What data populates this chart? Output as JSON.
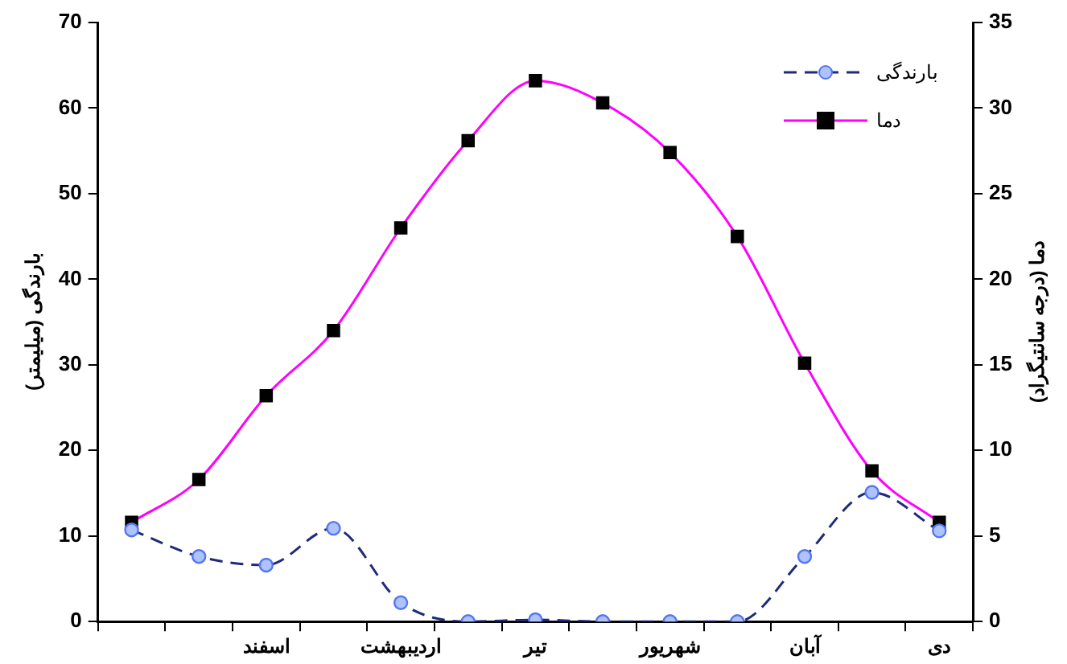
{
  "chart_data": {
    "type": "line",
    "ylabel": "بارندگی (میلیمتر)",
    "y2label": "دما (درجه سانتیگراد)",
    "categories": [
      null,
      null,
      "اسفند",
      null,
      "اردیبهشت",
      null,
      "تیر",
      null,
      "شهریور",
      null,
      "آبان",
      null,
      "دی"
    ],
    "series": [
      {
        "name": "بارندگی",
        "color": "#1f2a7a",
        "marker": "circle",
        "line_style": "dashed",
        "values": [
          10.7,
          7.6,
          6.6,
          10.9,
          2.2,
          0,
          0.2,
          0,
          0,
          0,
          7.6,
          15.1,
          10.6
        ]
      },
      {
        "name": "دما",
        "color": "#ff00ff",
        "marker": "square",
        "line_style": "solid",
        "axis": "y2",
        "values": [
          5.8,
          8.3,
          13.2,
          17.0,
          23.0,
          28.1,
          31.6,
          30.3,
          27.4,
          22.5,
          15.1,
          8.8,
          5.8
        ]
      }
    ],
    "ylim": [
      0,
      70
    ],
    "yticks": [
      0,
      10,
      20,
      30,
      40,
      50,
      60,
      70
    ],
    "y2lim": [
      0,
      35
    ],
    "y2ticks": [
      0,
      5,
      10,
      15,
      20,
      25,
      30,
      35
    ],
    "grid": false,
    "legend": "top right"
  }
}
